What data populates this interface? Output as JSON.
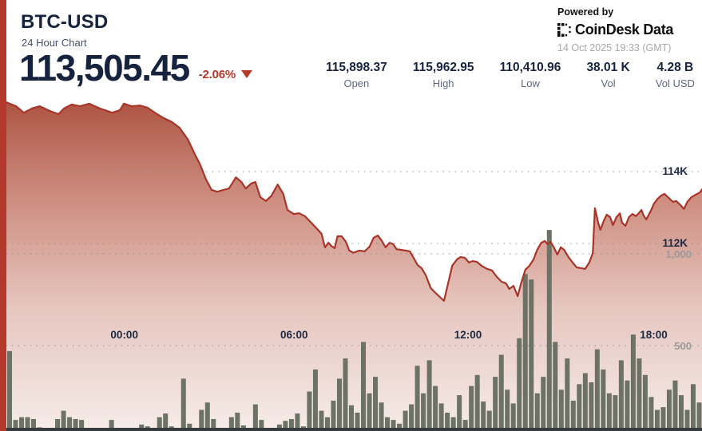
{
  "header": {
    "symbol": "BTC-USD",
    "subtitle": "24 Hour Chart",
    "price": "113,505.45",
    "change": "-2.06%",
    "change_direction": "down"
  },
  "stats": [
    {
      "value": "115,898.37",
      "label": "Open"
    },
    {
      "value": "115,962.95",
      "label": "High"
    },
    {
      "value": "110,410.96",
      "label": "Low"
    },
    {
      "value": "38.01 K",
      "label": "Vol"
    },
    {
      "value": "4.28 B",
      "label": "Vol USD"
    }
  ],
  "branding": {
    "powered_by": "Powered by",
    "brand": "CoinDesk Data",
    "brand_logo_icon": "coindesk-dot-matrix",
    "timestamp": "14 Oct 2025 19:33 (GMT)"
  },
  "colors": {
    "accent_red": "#b2392b",
    "line_red": "#a93428",
    "navy_text": "#16233f",
    "gray_label": "#5c6780",
    "volume_bar": "#6d7267",
    "baseline": "#363b3c",
    "grid_dot": "#8f8f8f",
    "area_top": "#a64431",
    "area_bottom": "#f7efec"
  },
  "chart_data": {
    "type": "area",
    "title": "BTC-USD 24 Hour Chart",
    "price_axis": {
      "ticks": [
        {
          "label": "114K",
          "value": 114000
        },
        {
          "label": "112K",
          "value": 112000
        }
      ],
      "position": "right"
    },
    "volume_axis": {
      "ticks": [
        {
          "label": "1,000",
          "value": 1000
        },
        {
          "label": "500",
          "value": 500
        }
      ],
      "position": "right"
    },
    "time_axis": {
      "ticks": [
        {
          "label": "00:00",
          "f": 0.175
        },
        {
          "label": "06:00",
          "f": 0.419
        },
        {
          "label": "12:00",
          "f": 0.669
        },
        {
          "label": "18:00",
          "f": 0.936
        }
      ]
    },
    "open": 115898.37,
    "high": 115962.95,
    "low": 110410.96,
    "last": 113505.45,
    "price_series": [
      [
        0.0,
        115930
      ],
      [
        0.014,
        115820
      ],
      [
        0.025,
        115640
      ],
      [
        0.037,
        115760
      ],
      [
        0.048,
        115820
      ],
      [
        0.062,
        115690
      ],
      [
        0.075,
        115600
      ],
      [
        0.083,
        115760
      ],
      [
        0.094,
        115870
      ],
      [
        0.106,
        115820
      ],
      [
        0.119,
        115890
      ],
      [
        0.134,
        115760
      ],
      [
        0.152,
        115640
      ],
      [
        0.163,
        115710
      ],
      [
        0.169,
        115890
      ],
      [
        0.18,
        115820
      ],
      [
        0.192,
        115840
      ],
      [
        0.203,
        115780
      ],
      [
        0.215,
        115620
      ],
      [
        0.226,
        115490
      ],
      [
        0.238,
        115380
      ],
      [
        0.249,
        115220
      ],
      [
        0.261,
        114890
      ],
      [
        0.272,
        114440
      ],
      [
        0.278,
        114220
      ],
      [
        0.287,
        113780
      ],
      [
        0.295,
        113490
      ],
      [
        0.303,
        113440
      ],
      [
        0.312,
        113490
      ],
      [
        0.32,
        113530
      ],
      [
        0.33,
        113840
      ],
      [
        0.338,
        113710
      ],
      [
        0.344,
        113530
      ],
      [
        0.352,
        113670
      ],
      [
        0.358,
        113710
      ],
      [
        0.365,
        113290
      ],
      [
        0.373,
        113180
      ],
      [
        0.381,
        113330
      ],
      [
        0.39,
        113640
      ],
      [
        0.398,
        113380
      ],
      [
        0.404,
        112930
      ],
      [
        0.413,
        112820
      ],
      [
        0.421,
        112840
      ],
      [
        0.429,
        112760
      ],
      [
        0.439,
        112560
      ],
      [
        0.447,
        112400
      ],
      [
        0.453,
        112270
      ],
      [
        0.458,
        111890
      ],
      [
        0.463,
        112020
      ],
      [
        0.467,
        111930
      ],
      [
        0.472,
        111870
      ],
      [
        0.476,
        112200
      ],
      [
        0.482,
        112200
      ],
      [
        0.488,
        112050
      ],
      [
        0.493,
        111800
      ],
      [
        0.499,
        111740
      ],
      [
        0.507,
        111800
      ],
      [
        0.515,
        111780
      ],
      [
        0.522,
        111910
      ],
      [
        0.528,
        112160
      ],
      [
        0.534,
        112220
      ],
      [
        0.54,
        112070
      ],
      [
        0.545,
        111890
      ],
      [
        0.551,
        112020
      ],
      [
        0.556,
        111980
      ],
      [
        0.561,
        111840
      ],
      [
        0.568,
        111820
      ],
      [
        0.574,
        111800
      ],
      [
        0.58,
        111780
      ],
      [
        0.586,
        111580
      ],
      [
        0.591,
        111400
      ],
      [
        0.597,
        111310
      ],
      [
        0.603,
        111110
      ],
      [
        0.61,
        110760
      ],
      [
        0.617,
        110620
      ],
      [
        0.623,
        110510
      ],
      [
        0.629,
        110400
      ],
      [
        0.635,
        110890
      ],
      [
        0.641,
        111380
      ],
      [
        0.648,
        111560
      ],
      [
        0.653,
        111620
      ],
      [
        0.659,
        111600
      ],
      [
        0.665,
        111470
      ],
      [
        0.67,
        111510
      ],
      [
        0.676,
        111490
      ],
      [
        0.683,
        111380
      ],
      [
        0.691,
        111290
      ],
      [
        0.698,
        111250
      ],
      [
        0.705,
        111070
      ],
      [
        0.712,
        110930
      ],
      [
        0.718,
        110890
      ],
      [
        0.723,
        110730
      ],
      [
        0.729,
        110820
      ],
      [
        0.735,
        110530
      ],
      [
        0.74,
        110890
      ],
      [
        0.746,
        111270
      ],
      [
        0.752,
        111380
      ],
      [
        0.758,
        111560
      ],
      [
        0.763,
        111820
      ],
      [
        0.769,
        112020
      ],
      [
        0.774,
        112070
      ],
      [
        0.778,
        111980
      ],
      [
        0.782,
        112050
      ],
      [
        0.787,
        111890
      ],
      [
        0.792,
        111690
      ],
      [
        0.797,
        111890
      ],
      [
        0.802,
        111820
      ],
      [
        0.808,
        111620
      ],
      [
        0.814,
        111470
      ],
      [
        0.82,
        111330
      ],
      [
        0.827,
        111310
      ],
      [
        0.832,
        111290
      ],
      [
        0.838,
        111470
      ],
      [
        0.843,
        111740
      ],
      [
        0.846,
        112980
      ],
      [
        0.851,
        112560
      ],
      [
        0.854,
        112380
      ],
      [
        0.859,
        112640
      ],
      [
        0.863,
        112800
      ],
      [
        0.868,
        112730
      ],
      [
        0.872,
        112510
      ],
      [
        0.877,
        112730
      ],
      [
        0.882,
        112840
      ],
      [
        0.885,
        112580
      ],
      [
        0.89,
        112490
      ],
      [
        0.895,
        112730
      ],
      [
        0.9,
        112820
      ],
      [
        0.905,
        112760
      ],
      [
        0.909,
        112840
      ],
      [
        0.913,
        112930
      ],
      [
        0.916,
        112780
      ],
      [
        0.92,
        112670
      ],
      [
        0.923,
        112780
      ],
      [
        0.927,
        112930
      ],
      [
        0.931,
        113110
      ],
      [
        0.936,
        113240
      ],
      [
        0.941,
        113330
      ],
      [
        0.946,
        113380
      ],
      [
        0.952,
        113270
      ],
      [
        0.958,
        113160
      ],
      [
        0.963,
        113180
      ],
      [
        0.969,
        113070
      ],
      [
        0.974,
        112960
      ],
      [
        0.979,
        113160
      ],
      [
        0.985,
        113290
      ],
      [
        0.991,
        113360
      ],
      [
        0.997,
        113420
      ],
      [
        1.0,
        113505
      ]
    ],
    "volume_series": [
      470,
      95,
      110,
      110,
      100,
      55,
      45,
      35,
      100,
      145,
      110,
      100,
      95,
      45,
      25,
      20,
      45,
      95,
      35,
      45,
      25,
      20,
      70,
      60,
      45,
      110,
      130,
      60,
      45,
      320,
      75,
      45,
      150,
      190,
      100,
      45,
      25,
      110,
      135,
      65,
      45,
      180,
      95,
      45,
      25,
      70,
      90,
      100,
      130,
      60,
      250,
      370,
      145,
      110,
      200,
      320,
      430,
      175,
      135,
      520,
      240,
      330,
      190,
      110,
      95,
      75,
      145,
      180,
      390,
      240,
      420,
      280,
      185,
      135,
      110,
      230,
      95,
      280,
      340,
      195,
      145,
      330,
      450,
      260,
      185,
      540,
      890,
      860,
      240,
      330,
      1130,
      520,
      260,
      430,
      200,
      290,
      350,
      300,
      480,
      370,
      240,
      230,
      420,
      310,
      560,
      430,
      340,
      220,
      150,
      165,
      260,
      310,
      230,
      150,
      290,
      190
    ]
  }
}
